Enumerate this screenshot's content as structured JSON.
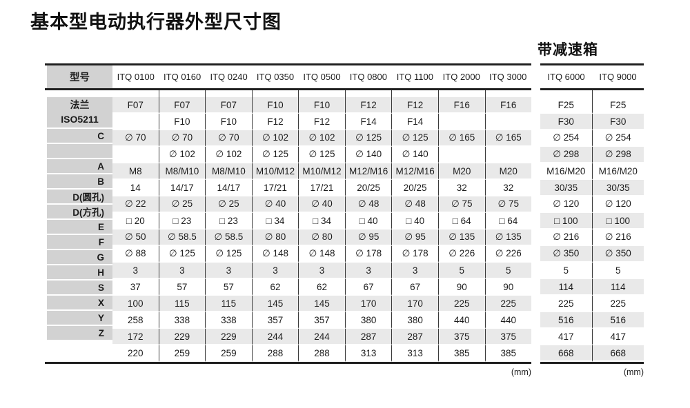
{
  "title": "基本型电动执行器外型尺寸图",
  "unit_label": "(mm)",
  "gearbox_heading": "带减速箱",
  "colors": {
    "label_cell_bg": "#d2d2d2",
    "shaded_row_bg": "#e9e9e9",
    "border": "#1f1f1f",
    "divider": "#3a3a3a"
  },
  "main_table": {
    "header_label": "型号",
    "columns": [
      "ITQ 0100",
      "ITQ 0160",
      "ITQ 0240",
      "ITQ 0350",
      "ITQ 0500",
      "ITQ 0800",
      "ITQ 1100",
      "ITQ 2000",
      "ITQ 3000"
    ],
    "label_blocks": [
      {
        "lines": [
          "法兰",
          "ISO5211"
        ],
        "rows": 2,
        "center": true
      },
      {
        "lines": [
          "C"
        ],
        "rows": 1
      },
      {
        "lines": [
          ""
        ],
        "rows": 1
      },
      {
        "lines": [
          "A"
        ],
        "rows": 1
      },
      {
        "lines": [
          "B"
        ],
        "rows": 1
      },
      {
        "lines": [
          "D(圆孔)"
        ],
        "rows": 1
      },
      {
        "lines": [
          "D(方孔)"
        ],
        "rows": 1
      },
      {
        "lines": [
          "E"
        ],
        "rows": 1
      },
      {
        "lines": [
          "F"
        ],
        "rows": 1
      },
      {
        "lines": [
          "G"
        ],
        "rows": 1
      },
      {
        "lines": [
          "H"
        ],
        "rows": 1
      },
      {
        "lines": [
          "S"
        ],
        "rows": 1
      },
      {
        "lines": [
          "X"
        ],
        "rows": 1
      },
      {
        "lines": [
          "Y"
        ],
        "rows": 1
      },
      {
        "lines": [
          "Z"
        ],
        "rows": 1
      }
    ],
    "rows": [
      [
        "F07",
        "F07",
        "F07",
        "F10",
        "F10",
        "F12",
        "F12",
        "F16",
        "F16"
      ],
      [
        "",
        "F10",
        "F10",
        "F12",
        "F12",
        "F14",
        "F14",
        "",
        ""
      ],
      [
        "∅ 70",
        "∅ 70",
        "∅ 70",
        "∅ 102",
        "∅ 102",
        "∅ 125",
        "∅ 125",
        "∅ 165",
        "∅ 165"
      ],
      [
        "",
        "∅ 102",
        "∅ 102",
        "∅ 125",
        "∅ 125",
        "∅ 140",
        "∅ 140",
        "",
        ""
      ],
      [
        "M8",
        "M8/M10",
        "M8/M10",
        "M10/M12",
        "M10/M12",
        "M12/M16",
        "M12/M16",
        "M20",
        "M20"
      ],
      [
        "14",
        "14/17",
        "14/17",
        "17/21",
        "17/21",
        "20/25",
        "20/25",
        "32",
        "32"
      ],
      [
        "∅ 22",
        "∅ 25",
        "∅ 25",
        "∅ 40",
        "∅ 40",
        "∅ 48",
        "∅ 48",
        "∅ 75",
        "∅ 75"
      ],
      [
        "□ 20",
        "□ 23",
        "□ 23",
        "□ 34",
        "□ 34",
        "□ 40",
        "□ 40",
        "□ 64",
        "□ 64"
      ],
      [
        "∅ 50",
        "∅ 58.5",
        "∅ 58.5",
        "∅ 80",
        "∅ 80",
        "∅ 95",
        "∅ 95",
        "∅ 135",
        "∅ 135"
      ],
      [
        "∅ 88",
        "∅ 125",
        "∅ 125",
        "∅ 148",
        "∅ 148",
        "∅ 178",
        "∅ 178",
        "∅ 226",
        "∅ 226"
      ],
      [
        "3",
        "3",
        "3",
        "3",
        "3",
        "3",
        "3",
        "5",
        "5"
      ],
      [
        "37",
        "57",
        "57",
        "62",
        "62",
        "67",
        "67",
        "90",
        "90"
      ],
      [
        "100",
        "115",
        "115",
        "145",
        "145",
        "170",
        "170",
        "225",
        "225"
      ],
      [
        "258",
        "338",
        "338",
        "357",
        "357",
        "380",
        "380",
        "440",
        "440"
      ],
      [
        "172",
        "229",
        "229",
        "244",
        "244",
        "287",
        "287",
        "375",
        "375"
      ],
      [
        "220",
        "259",
        "259",
        "288",
        "288",
        "313",
        "313",
        "385",
        "385"
      ]
    ]
  },
  "gear_table": {
    "columns": [
      "ITQ 6000",
      "ITQ 9000"
    ],
    "rows": [
      [
        "F25",
        "F25"
      ],
      [
        "F30",
        "F30"
      ],
      [
        "∅ 254",
        "∅ 254"
      ],
      [
        "∅ 298",
        "∅ 298"
      ],
      [
        "M16/M20",
        "M16/M20"
      ],
      [
        "30/35",
        "30/35"
      ],
      [
        "∅ 120",
        "∅ 120"
      ],
      [
        "□ 100",
        "□ 100"
      ],
      [
        "∅ 216",
        "∅ 216"
      ],
      [
        "∅ 350",
        "∅ 350"
      ],
      [
        "5",
        "5"
      ],
      [
        "114",
        "114"
      ],
      [
        "225",
        "225"
      ],
      [
        "516",
        "516"
      ],
      [
        "417",
        "417"
      ],
      [
        "668",
        "668"
      ]
    ]
  }
}
